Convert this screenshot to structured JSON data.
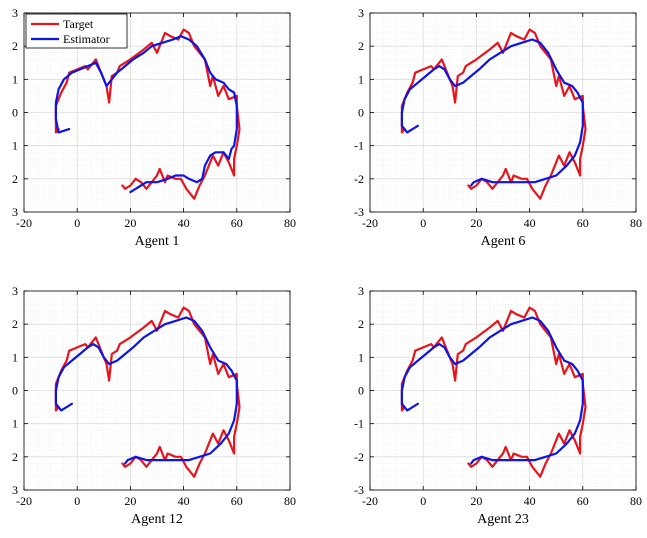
{
  "chart_data": [
    {
      "type": "line",
      "subtitle": "Agent 1",
      "xlim": [
        -20,
        80
      ],
      "ylim": [
        -3,
        3
      ],
      "xticks": [
        "-20",
        "0",
        "20",
        "40",
        "60",
        "80"
      ],
      "yticks": [
        "3",
        "2",
        "1",
        "0",
        "1",
        "2",
        "3"
      ],
      "grid": true,
      "legend": {
        "position": "top-left",
        "entries": [
          "Target",
          "Estimator"
        ]
      },
      "series": [
        {
          "name": "Target",
          "color": "#e8141b",
          "x": [
            -7,
            -8,
            -8,
            -6,
            -4,
            -3,
            0,
            3,
            4,
            7,
            9,
            11,
            12,
            13,
            15,
            16,
            20,
            25,
            28,
            30,
            33,
            35,
            38,
            40,
            42,
            44,
            48,
            50,
            51,
            53,
            55,
            57,
            60,
            60,
            61,
            60,
            59,
            59,
            57,
            55,
            53,
            51,
            50,
            48,
            46,
            45,
            44,
            41,
            39,
            37,
            34,
            33,
            31,
            30,
            28,
            26,
            24,
            22,
            20,
            18,
            17
          ],
          "y": [
            -0.5,
            -0.6,
            0.2,
            0.6,
            0.9,
            1.2,
            1.3,
            1.4,
            1.3,
            1.6,
            1.2,
            0.8,
            0.3,
            1.1,
            1.2,
            1.4,
            1.6,
            1.9,
            2.1,
            1.8,
            2.4,
            2.3,
            2.2,
            2.5,
            2.4,
            2.0,
            1.6,
            0.8,
            1.1,
            0.5,
            0.8,
            0.4,
            0.5,
            0.2,
            -0.5,
            -1.0,
            -1.4,
            -1.9,
            -1.5,
            -1.2,
            -1.6,
            -1.3,
            -1.5,
            -1.9,
            -2.2,
            -2.4,
            -2.6,
            -2.3,
            -2.0,
            -2.0,
            -1.9,
            -2.1,
            -1.7,
            -1.9,
            -2.1,
            -2.3,
            -2.1,
            -2.0,
            -2.2,
            -2.3,
            -2.2
          ]
        },
        {
          "name": "Estimator",
          "color": "#0d14e6",
          "x": [
            -3,
            -7,
            -8,
            -8,
            -7,
            -5,
            -2,
            1,
            4,
            7,
            9,
            11,
            13,
            15,
            18,
            21,
            25,
            28,
            32,
            36,
            39,
            42,
            45,
            48,
            50,
            52,
            55,
            57,
            59,
            60,
            60,
            59,
            58,
            57,
            55,
            52,
            50,
            48,
            47,
            45,
            42,
            40,
            37,
            34,
            30,
            26,
            24,
            22,
            20
          ],
          "y": [
            -0.5,
            -0.6,
            -0.2,
            0.3,
            0.7,
            1.0,
            1.2,
            1.3,
            1.4,
            1.5,
            1.2,
            0.8,
            1.0,
            1.2,
            1.4,
            1.6,
            1.8,
            2.0,
            2.1,
            2.2,
            2.3,
            2.2,
            2.0,
            1.6,
            1.2,
            1.0,
            0.9,
            0.7,
            0.6,
            0.2,
            -0.5,
            -1.0,
            -1.1,
            -1.4,
            -1.2,
            -1.2,
            -1.3,
            -1.6,
            -2.0,
            -2.1,
            -2.0,
            -1.9,
            -1.9,
            -2.0,
            -2.1,
            -2.1,
            -2.2,
            -2.3,
            -2.4
          ]
        }
      ]
    },
    {
      "type": "line",
      "subtitle": "Agent 6",
      "xlim": [
        -20,
        80
      ],
      "ylim": [
        -3,
        3
      ],
      "xticks": [
        "-20",
        "0",
        "20",
        "40",
        "60",
        "80"
      ],
      "yticks": [
        "3",
        "2",
        "1",
        "0",
        "-1",
        "-2",
        "-3"
      ],
      "grid": true,
      "series": [
        {
          "name": "Target",
          "color": "#e8141b",
          "x": [
            -7,
            -8,
            -8,
            -6,
            -4,
            -3,
            0,
            3,
            4,
            7,
            9,
            11,
            12,
            13,
            15,
            16,
            20,
            25,
            28,
            30,
            33,
            35,
            38,
            40,
            42,
            44,
            48,
            50,
            51,
            53,
            55,
            57,
            60,
            60,
            61,
            60,
            59,
            59,
            57,
            55,
            53,
            51,
            50,
            48,
            46,
            45,
            44,
            41,
            39,
            37,
            34,
            33,
            31,
            30,
            28,
            26,
            24,
            22,
            20,
            18,
            17
          ],
          "y": [
            -0.5,
            -0.6,
            0.2,
            0.6,
            0.9,
            1.2,
            1.3,
            1.4,
            1.3,
            1.6,
            1.2,
            0.8,
            0.3,
            1.1,
            1.2,
            1.4,
            1.6,
            1.9,
            2.1,
            1.8,
            2.4,
            2.3,
            2.2,
            2.5,
            2.4,
            2.0,
            1.6,
            0.8,
            1.1,
            0.5,
            0.8,
            0.4,
            0.5,
            0.2,
            -0.5,
            -1.0,
            -1.4,
            -1.9,
            -1.5,
            -1.2,
            -1.6,
            -1.3,
            -1.5,
            -1.9,
            -2.2,
            -2.4,
            -2.6,
            -2.3,
            -2.0,
            -2.0,
            -1.9,
            -2.1,
            -1.7,
            -1.9,
            -2.1,
            -2.3,
            -2.1,
            -2.0,
            -2.2,
            -2.3,
            -2.2
          ]
        },
        {
          "name": "Estimator",
          "color": "#0d14e6",
          "x": [
            -2,
            -6,
            -8,
            -8,
            -7,
            -5,
            -2,
            1,
            4,
            6,
            8,
            10,
            12,
            15,
            18,
            21,
            25,
            29,
            33,
            37,
            41,
            44,
            47,
            50,
            53,
            56,
            58,
            60,
            60,
            59,
            57,
            54,
            50,
            46,
            42,
            38,
            34,
            30,
            26,
            22,
            19,
            18
          ],
          "y": [
            -0.4,
            -0.6,
            -0.4,
            0.0,
            0.4,
            0.7,
            0.9,
            1.1,
            1.3,
            1.4,
            1.3,
            1.0,
            0.8,
            0.9,
            1.1,
            1.3,
            1.6,
            1.8,
            2.0,
            2.1,
            2.2,
            2.1,
            1.8,
            1.3,
            0.9,
            0.8,
            0.6,
            0.3,
            -0.4,
            -0.9,
            -1.3,
            -1.6,
            -1.9,
            -2.0,
            -2.1,
            -2.1,
            -2.1,
            -2.1,
            -2.1,
            -2.0,
            -2.1,
            -2.2
          ]
        }
      ]
    },
    {
      "type": "line",
      "subtitle": "Agent 12",
      "xlim": [
        -20,
        80
      ],
      "ylim": [
        -3,
        3
      ],
      "xticks": [
        "-20",
        "0",
        "20",
        "40",
        "60",
        "80"
      ],
      "yticks": [
        "3",
        "2",
        "1",
        "0",
        "1",
        "2",
        "3"
      ],
      "grid": true,
      "series": [
        {
          "name": "Target",
          "color": "#e8141b",
          "x": [
            -7,
            -8,
            -8,
            -6,
            -4,
            -3,
            0,
            3,
            4,
            7,
            9,
            11,
            12,
            13,
            15,
            16,
            20,
            25,
            28,
            30,
            33,
            35,
            38,
            40,
            42,
            44,
            48,
            50,
            51,
            53,
            55,
            57,
            60,
            60,
            61,
            60,
            59,
            59,
            57,
            55,
            53,
            51,
            50,
            48,
            46,
            45,
            44,
            41,
            39,
            37,
            34,
            33,
            31,
            30,
            28,
            26,
            24,
            22,
            20,
            18,
            17
          ],
          "y": [
            -0.5,
            -0.6,
            0.2,
            0.6,
            0.9,
            1.2,
            1.3,
            1.4,
            1.3,
            1.6,
            1.2,
            0.8,
            0.3,
            1.1,
            1.2,
            1.4,
            1.6,
            1.9,
            2.1,
            1.8,
            2.4,
            2.3,
            2.2,
            2.5,
            2.4,
            2.0,
            1.6,
            0.8,
            1.1,
            0.5,
            0.8,
            0.4,
            0.5,
            0.2,
            -0.5,
            -1.0,
            -1.4,
            -1.9,
            -1.5,
            -1.2,
            -1.6,
            -1.3,
            -1.5,
            -1.9,
            -2.2,
            -2.4,
            -2.6,
            -2.3,
            -2.0,
            -2.0,
            -1.9,
            -2.1,
            -1.7,
            -1.9,
            -2.1,
            -2.3,
            -2.1,
            -2.0,
            -2.2,
            -2.3,
            -2.2
          ]
        },
        {
          "name": "Estimator",
          "color": "#0d14e6",
          "x": [
            -2,
            -6,
            -8,
            -8,
            -7,
            -5,
            -2,
            1,
            4,
            6,
            8,
            10,
            12,
            15,
            18,
            21,
            25,
            29,
            33,
            37,
            41,
            44,
            47,
            50,
            53,
            56,
            58,
            60,
            60,
            59,
            57,
            54,
            50,
            46,
            42,
            38,
            34,
            30,
            26,
            22,
            19,
            18
          ],
          "y": [
            -0.4,
            -0.6,
            -0.4,
            0.0,
            0.4,
            0.7,
            0.9,
            1.1,
            1.3,
            1.4,
            1.3,
            1.0,
            0.8,
            0.9,
            1.1,
            1.3,
            1.6,
            1.8,
            2.0,
            2.1,
            2.2,
            2.1,
            1.8,
            1.3,
            0.9,
            0.8,
            0.6,
            0.3,
            -0.4,
            -0.9,
            -1.3,
            -1.6,
            -1.9,
            -2.0,
            -2.1,
            -2.1,
            -2.1,
            -2.1,
            -2.1,
            -2.0,
            -2.1,
            -2.2
          ]
        }
      ]
    },
    {
      "type": "line",
      "subtitle": "Agent 23",
      "xlim": [
        -20,
        80
      ],
      "ylim": [
        -3,
        3
      ],
      "xticks": [
        "-20",
        "0",
        "20",
        "40",
        "60",
        "80"
      ],
      "yticks": [
        "3",
        "2",
        "1",
        "0",
        "-1",
        "-2",
        "-3"
      ],
      "grid": true,
      "series": [
        {
          "name": "Target",
          "color": "#e8141b",
          "x": [
            -7,
            -8,
            -8,
            -6,
            -4,
            -3,
            0,
            3,
            4,
            7,
            9,
            11,
            12,
            13,
            15,
            16,
            20,
            25,
            28,
            30,
            33,
            35,
            38,
            40,
            42,
            44,
            48,
            50,
            51,
            53,
            55,
            57,
            60,
            60,
            61,
            60,
            59,
            59,
            57,
            55,
            53,
            51,
            50,
            48,
            46,
            45,
            44,
            41,
            39,
            37,
            34,
            33,
            31,
            30,
            28,
            26,
            24,
            22,
            20,
            18,
            17
          ],
          "y": [
            -0.5,
            -0.6,
            0.2,
            0.6,
            0.9,
            1.2,
            1.3,
            1.4,
            1.3,
            1.6,
            1.2,
            0.8,
            0.3,
            1.1,
            1.2,
            1.4,
            1.6,
            1.9,
            2.1,
            1.8,
            2.4,
            2.3,
            2.2,
            2.5,
            2.4,
            2.0,
            1.6,
            0.8,
            1.1,
            0.5,
            0.8,
            0.4,
            0.5,
            0.2,
            -0.5,
            -1.0,
            -1.4,
            -1.9,
            -1.5,
            -1.2,
            -1.6,
            -1.3,
            -1.5,
            -1.9,
            -2.2,
            -2.4,
            -2.6,
            -2.3,
            -2.0,
            -2.0,
            -1.9,
            -2.1,
            -1.7,
            -1.9,
            -2.1,
            -2.3,
            -2.1,
            -2.0,
            -2.2,
            -2.3,
            -2.2
          ]
        },
        {
          "name": "Estimator",
          "color": "#0d14e6",
          "x": [
            -2,
            -6,
            -8,
            -8,
            -7,
            -5,
            -2,
            1,
            4,
            6,
            8,
            10,
            12,
            15,
            18,
            21,
            25,
            29,
            33,
            37,
            41,
            44,
            47,
            50,
            53,
            56,
            58,
            60,
            60,
            59,
            57,
            54,
            50,
            46,
            42,
            38,
            34,
            30,
            26,
            22,
            19,
            18
          ],
          "y": [
            -0.4,
            -0.6,
            -0.4,
            0.0,
            0.4,
            0.7,
            0.9,
            1.1,
            1.3,
            1.4,
            1.3,
            1.0,
            0.8,
            0.9,
            1.1,
            1.3,
            1.6,
            1.8,
            2.0,
            2.1,
            2.2,
            2.1,
            1.8,
            1.3,
            0.9,
            0.8,
            0.6,
            0.3,
            -0.4,
            -0.9,
            -1.3,
            -1.6,
            -1.9,
            -2.0,
            -2.1,
            -2.1,
            -2.1,
            -2.1,
            -2.1,
            -2.0,
            -2.1,
            -2.2
          ]
        }
      ]
    }
  ]
}
